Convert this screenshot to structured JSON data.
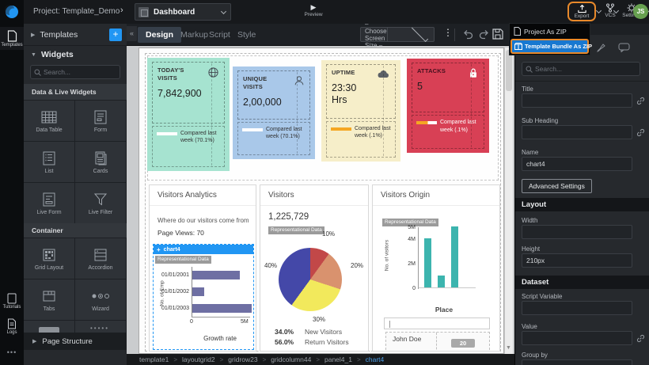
{
  "topbar": {
    "project_label": "Project: Template_Demo",
    "page_name": "Dashboard",
    "preview_label": "Preview",
    "export_label": "Export",
    "vcs_label": "VCS",
    "settings_label": "Settings",
    "avatar_initials": "JS"
  },
  "export_menu": {
    "item1": "Project As ZIP",
    "item2": "Template Bundle As ZIP"
  },
  "tabs": {
    "design": "Design",
    "markup": "Markup",
    "script": "Script",
    "style": "Style"
  },
  "toolbar": {
    "screen_size_placeholder": "– Choose Screen Size –"
  },
  "rail": {
    "templates": "Templates",
    "tutorials": "Tutorials",
    "logs": "Logs",
    "more": "•••"
  },
  "widgets_panel": {
    "templates_header": "Templates",
    "widgets_header": "Widgets",
    "search_placeholder": "Search...",
    "section1_title": "Data & Live Widgets",
    "tiles1": [
      "Data Table",
      "Form",
      "List",
      "Cards",
      "Live Form",
      "Live Filter"
    ],
    "section2_title": "Container",
    "tiles2": [
      "Grid Layout",
      "Accordion",
      "Tabs",
      "Wizard"
    ],
    "page_structure_label": "Page Structure"
  },
  "cards": [
    {
      "title": "TODAY'S VISITS",
      "value": "7,842,900",
      "note": "Compared last week (70.1%)",
      "bg": "#a6e3d0"
    },
    {
      "title": "UNIQUE VISITS",
      "value": "2,00,000",
      "note": "Compared last week (70.1%)",
      "bg": "#a9c8e9"
    },
    {
      "title": "UPTIME",
      "value": "23:30 Hrs",
      "note": "Compared last week (.1%)",
      "bg": "#f6eec9"
    },
    {
      "title": "ATTACKS",
      "value": "5",
      "note": "Compared last week (.1%)",
      "bg": "#d84055"
    }
  ],
  "panel1": {
    "title": "Visitors Analytics",
    "subtitle": "Where do our visitors come from",
    "stat": "Page Views: 70",
    "widget_tag": "chart4",
    "badge": "Representational Data"
  },
  "panel2": {
    "title": "Visitors",
    "total": "1,225,729",
    "badge": "Representational Data",
    "legend": [
      {
        "pct": "34.0%",
        "label": "New Visitors"
      },
      {
        "pct": "56.0%",
        "label": "Return Visitors"
      }
    ]
  },
  "panel3": {
    "title": "Visitors Origin",
    "badge": "Representational Data",
    "row_name": "John Doe",
    "row_badge": "20"
  },
  "properties": {
    "search_placeholder": "Search...",
    "title_label": "Title",
    "sub_heading_label": "Sub Heading",
    "name_label": "Name",
    "name_value": "chart4",
    "advanced_settings_label": "Advanced Settings",
    "layout_header": "Layout",
    "width_label": "Width",
    "height_label": "Height",
    "height_value": "210px",
    "dataset_header": "Dataset",
    "script_variable_label": "Script Variable",
    "value_label": "Value",
    "group_by_label": "Group by"
  },
  "breadcrumb": [
    "template1",
    "layoutgrid2",
    "gridrow23",
    "gridcolumn44",
    "panel4_1",
    "chart4"
  ],
  "colors": {
    "accent_orange": "#e8892b",
    "highlight_blue": "#1878d0",
    "selection_blue": "#2196f3",
    "hbar_color": "#6e6fa3",
    "vbar_color": "#3cb4ae"
  },
  "chart_data": [
    {
      "id": "growth-rate-bar",
      "type": "bar",
      "orientation": "horizontal",
      "categories": [
        "01/01/2001",
        "01/01/2002",
        "01/01/2003"
      ],
      "values": [
        4000000,
        1000000,
        5000000
      ],
      "xlabel": "Growth rate",
      "ylabel": "No. of Emp",
      "xlim": [
        0,
        5000000
      ],
      "xticks": [
        {
          "label": "0",
          "value": 0
        },
        {
          "label": "5M",
          "value": 5000000
        }
      ],
      "color": "#6e6fa3",
      "badge": "Representational Data"
    },
    {
      "id": "visitors-pie",
      "type": "pie",
      "slices": [
        {
          "label": "10%",
          "value": 10,
          "color": "#c24848"
        },
        {
          "label": "20%",
          "value": 20,
          "color": "#d9926e"
        },
        {
          "label": "30%",
          "value": 30,
          "color": "#f2e95c"
        },
        {
          "label": "40%",
          "value": 40,
          "color": "#4448a8"
        }
      ],
      "legend": [
        {
          "pct": "34.0%",
          "label": "New Visitors"
        },
        {
          "pct": "56.0%",
          "label": "Return Visitors"
        }
      ],
      "total_label": "1,225,729"
    },
    {
      "id": "visitors-origin-bar",
      "type": "bar",
      "orientation": "vertical",
      "categories": [
        "",
        "",
        ""
      ],
      "values": [
        4000000,
        1000000,
        5000000
      ],
      "xlabel": "Place",
      "ylabel": "No. of visitors",
      "ylim": [
        0,
        5000000
      ],
      "yticks": [
        {
          "label": "5M",
          "value": 5000000
        },
        {
          "label": "4M",
          "value": 4000000
        },
        {
          "label": "2M",
          "value": 2000000
        },
        {
          "label": "0",
          "value": 0
        }
      ],
      "color": "#3cb4ae"
    }
  ]
}
